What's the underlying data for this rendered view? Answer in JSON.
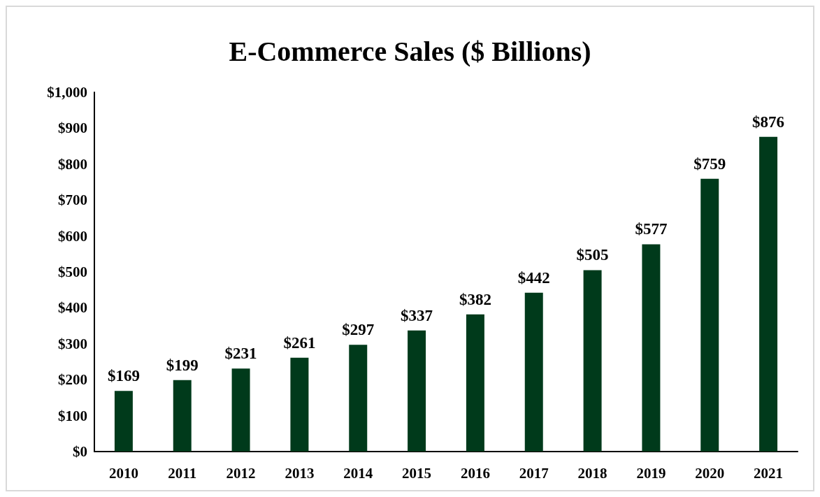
{
  "chart_data": {
    "type": "bar",
    "title": "E-Commerce Sales ($ Billions)",
    "categories": [
      "2010",
      "2011",
      "2012",
      "2013",
      "2014",
      "2015",
      "2016",
      "2017",
      "2018",
      "2019",
      "2020",
      "2021"
    ],
    "values": [
      169,
      199,
      231,
      261,
      297,
      337,
      382,
      442,
      505,
      577,
      759,
      876
    ],
    "value_labels": [
      "$169",
      "$199",
      "$231",
      "$261",
      "$297",
      "$337",
      "$382",
      "$442",
      "$505",
      "$577",
      "$759",
      "$876"
    ],
    "color": "#003a1b",
    "ylim": [
      0,
      1000
    ],
    "yticks": [
      {
        "value": 0,
        "label": "$0"
      },
      {
        "value": 100,
        "label": "$100"
      },
      {
        "value": 200,
        "label": "$200"
      },
      {
        "value": 300,
        "label": "$300"
      },
      {
        "value": 400,
        "label": "$400"
      },
      {
        "value": 500,
        "label": "$500"
      },
      {
        "value": 600,
        "label": "$600"
      },
      {
        "value": 700,
        "label": "$700"
      },
      {
        "value": 800,
        "label": "$800"
      },
      {
        "value": 900,
        "label": "$900"
      },
      {
        "value": 1000,
        "label": "$1,000"
      }
    ],
    "grid": false
  }
}
